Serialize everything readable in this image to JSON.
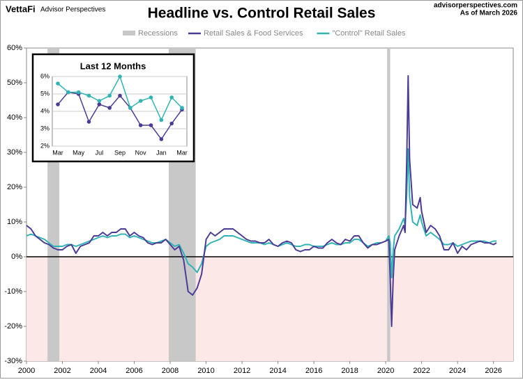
{
  "header": {
    "brand": "VettaFi",
    "brand_sub": "Advisor Perspectives",
    "site": "advisorperspectives.com",
    "as_of": "As of March 2026"
  },
  "chart_data": [
    {
      "type": "line",
      "title": "Headline vs. Control Retail Sales",
      "recession_label": "Recessions",
      "recessions": [
        [
          2001.17,
          2001.83
        ],
        [
          2007.92,
          2009.42
        ],
        [
          2020.08,
          2020.25
        ]
      ],
      "x": [
        2000.0,
        2000.25,
        2000.5,
        2000.75,
        2001.0,
        2001.25,
        2001.5,
        2001.75,
        2002.0,
        2002.25,
        2002.5,
        2002.75,
        2003.0,
        2003.25,
        2003.5,
        2003.75,
        2004.0,
        2004.25,
        2004.5,
        2004.75,
        2005.0,
        2005.25,
        2005.5,
        2005.75,
        2006.0,
        2006.25,
        2006.5,
        2006.75,
        2007.0,
        2007.25,
        2007.5,
        2007.75,
        2008.0,
        2008.25,
        2008.5,
        2008.75,
        2009.0,
        2009.25,
        2009.5,
        2009.75,
        2010.0,
        2010.25,
        2010.5,
        2010.75,
        2011.0,
        2011.25,
        2011.5,
        2011.75,
        2012.0,
        2012.25,
        2012.5,
        2012.75,
        2013.0,
        2013.25,
        2013.5,
        2013.75,
        2014.0,
        2014.25,
        2014.5,
        2014.75,
        2015.0,
        2015.25,
        2015.5,
        2015.75,
        2016.0,
        2016.25,
        2016.5,
        2016.75,
        2017.0,
        2017.25,
        2017.5,
        2017.75,
        2018.0,
        2018.25,
        2018.5,
        2018.75,
        2019.0,
        2019.25,
        2019.5,
        2019.75,
        2020.0,
        2020.17,
        2020.25,
        2020.33,
        2020.42,
        2020.5,
        2020.75,
        2021.0,
        2021.08,
        2021.17,
        2021.25,
        2021.33,
        2021.5,
        2021.75,
        2021.92,
        2022.0,
        2022.25,
        2022.5,
        2022.75,
        2023.0,
        2023.25,
        2023.5,
        2023.75,
        2024.0,
        2024.25,
        2024.5,
        2024.75,
        2025.0,
        2025.25,
        2025.5,
        2025.75,
        2026.0,
        2026.17
      ],
      "series": [
        {
          "name": "Retail Sales & Food Services",
          "color": "#4b3a96",
          "values": [
            9,
            8,
            6,
            5,
            4,
            3.5,
            2.5,
            2,
            2,
            3,
            3.5,
            1,
            3,
            3.5,
            4,
            6,
            6,
            7,
            6,
            7,
            7,
            8,
            8,
            6,
            7,
            6,
            5.5,
            4,
            3.5,
            4,
            4,
            5,
            3.5,
            2,
            3,
            -1,
            -10,
            -11,
            -9,
            -5,
            5,
            7,
            6,
            7,
            8,
            8,
            8,
            7,
            6,
            5,
            4.5,
            4.5,
            4,
            4,
            5,
            3.5,
            3,
            4,
            4.5,
            4,
            2,
            1.5,
            2,
            2,
            3,
            2.5,
            2.5,
            4,
            5,
            4,
            3.5,
            5,
            4.5,
            6,
            6,
            4,
            2.5,
            3.5,
            3.5,
            4,
            4.5,
            5,
            -6,
            -20,
            -6,
            2,
            6,
            9,
            7,
            28,
            52,
            28,
            15,
            14,
            17,
            13,
            7,
            9,
            8,
            6,
            2,
            2,
            4,
            1,
            3,
            2,
            3.5,
            4,
            4.5,
            4,
            4,
            3.5,
            4
          ]
        },
        {
          "name": "\"Control\" Retail Sales",
          "color": "#2fb3b3",
          "values": [
            6,
            6.5,
            6,
            5.5,
            5,
            4,
            3,
            3,
            3,
            3.5,
            3.5,
            3,
            3.5,
            4,
            4.5,
            5,
            5.5,
            6,
            5.5,
            6,
            6,
            6.5,
            6.5,
            5.5,
            6,
            5.5,
            5,
            4.5,
            4,
            4,
            4.5,
            5,
            4,
            3,
            3.5,
            1,
            -2,
            -3,
            -4.5,
            -2,
            3,
            4,
            4.5,
            5,
            6,
            6,
            6,
            5.5,
            5,
            4.5,
            4,
            4,
            4,
            3.5,
            4,
            3.5,
            3,
            3.5,
            4,
            3.5,
            3,
            3,
            3.5,
            3.5,
            3,
            3,
            3,
            3.5,
            4,
            3.5,
            3.5,
            4,
            4,
            5,
            5,
            4,
            3,
            3.5,
            4,
            4,
            4.5,
            6,
            4,
            -6,
            2,
            6,
            8,
            11,
            9,
            18,
            31,
            17,
            10,
            9,
            12,
            10,
            6,
            7,
            6,
            5,
            3.5,
            3.5,
            4,
            3,
            3.5,
            4,
            4.5,
            4.5,
            4.5,
            4.5,
            4,
            4.5,
            4.5
          ]
        }
      ],
      "xlim": [
        2000,
        2027.1
      ],
      "xticks": [
        2000,
        2002,
        2004,
        2006,
        2008,
        2010,
        2012,
        2014,
        2016,
        2018,
        2020,
        2022,
        2024,
        2026
      ],
      "ylim": [
        -30,
        60
      ],
      "yticks": [
        {
          "value": -30,
          "label": "-30%"
        },
        {
          "value": -20,
          "label": "-20%"
        },
        {
          "value": -10,
          "label": "-10%"
        },
        {
          "value": 0,
          "label": "0%"
        },
        {
          "value": 10,
          "label": "10%"
        },
        {
          "value": 20,
          "label": "20%"
        },
        {
          "value": 30,
          "label": "30%"
        },
        {
          "value": 40,
          "label": "40%"
        },
        {
          "value": 50,
          "label": "50%"
        },
        {
          "value": 60,
          "label": "60%"
        }
      ]
    },
    {
      "type": "line",
      "title": "Last 12 Months",
      "categories": [
        "Mar",
        null,
        "May",
        null,
        "Jul",
        null,
        "Sep",
        null,
        "Nov",
        null,
        "Jan",
        null,
        "Mar"
      ],
      "series": [
        {
          "name": "Retail Sales & Food Services",
          "color": "#4b3a96",
          "values": [
            4.4,
            5.1,
            5.0,
            3.4,
            4.4,
            4.2,
            4.9,
            4.2,
            3.2,
            3.2,
            2.4,
            3.3,
            4.1
          ]
        },
        {
          "name": "\"Control\" Retail Sales",
          "color": "#2fb3b3",
          "values": [
            5.6,
            5.1,
            5.1,
            4.9,
            4.6,
            4.9,
            6.0,
            4.2,
            4.6,
            4.8,
            3.5,
            4.8,
            4.2
          ]
        }
      ],
      "ylim": [
        2,
        6
      ],
      "yticks": [
        {
          "value": 2,
          "label": "2%"
        },
        {
          "value": 3,
          "label": "3%"
        },
        {
          "value": 4,
          "label": "4%"
        },
        {
          "value": 5,
          "label": "5%"
        },
        {
          "value": 6,
          "label": "6%"
        }
      ]
    }
  ]
}
